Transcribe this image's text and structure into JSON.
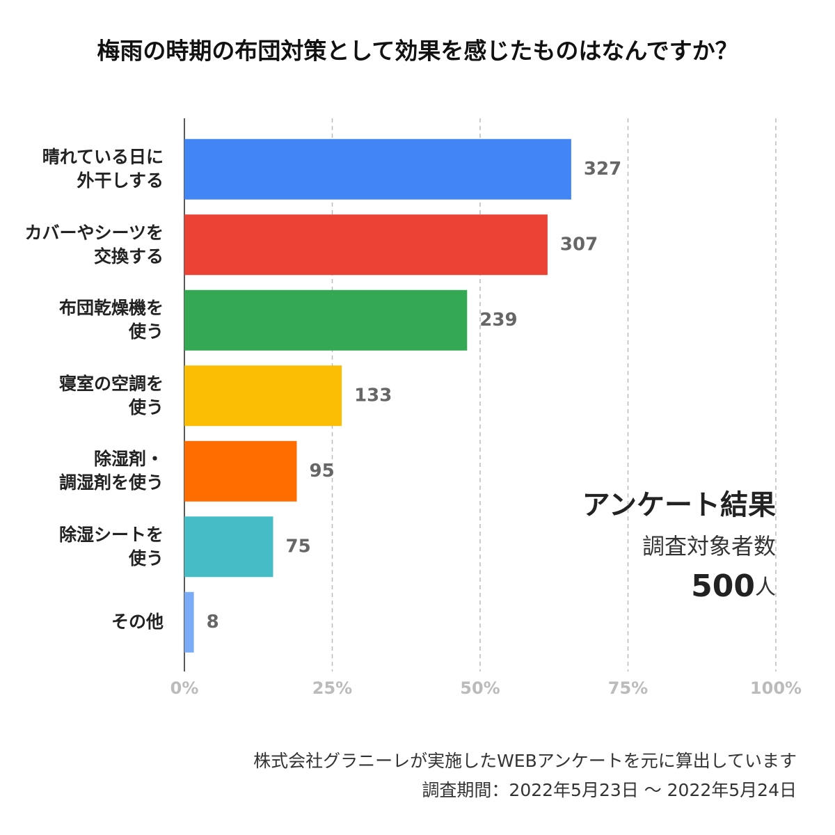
{
  "chart_data": {
    "type": "hbar",
    "title": "梅雨の時期の布団対策として効果を感じたものはなんですか？",
    "categories": [
      "晴れている日に\n外干しする",
      "カバーやシーツを\n交換する",
      "布団乾燥機を\n使う",
      "寝室の空調を\n使う",
      "除湿剤・\n調湿剤を使う",
      "除湿シートを\n使う",
      "その他"
    ],
    "values": [
      327,
      307,
      239,
      133,
      95,
      75,
      8
    ],
    "colors": [
      "#4285f4",
      "#ea4335",
      "#34a853",
      "#fbbc04",
      "#ff6d01",
      "#46bdc6",
      "#7baaf7"
    ],
    "xlim": [
      0,
      500
    ],
    "xticks": [
      {
        "value": 0,
        "label": "0%"
      },
      {
        "value": 125,
        "label": "25%"
      },
      {
        "value": 250,
        "label": "50%"
      },
      {
        "value": 375,
        "label": "75%"
      },
      {
        "value": 500,
        "label": "100%"
      }
    ],
    "grid": true,
    "annotation": {
      "title": "アンケート結果",
      "label": "調査対象者数",
      "count": 500,
      "unit": "人"
    },
    "notes": [
      "株式会社グラニーレが実施したWEBアンケートを元に算出しています",
      "調査期間：2022年5月23日 〜 2022年5月24日"
    ]
  }
}
